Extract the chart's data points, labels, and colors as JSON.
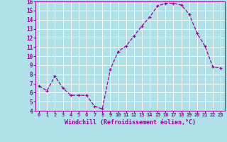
{
  "x": [
    0,
    1,
    2,
    3,
    4,
    5,
    6,
    7,
    8,
    9,
    10,
    11,
    12,
    13,
    14,
    15,
    16,
    17,
    18,
    19,
    20,
    21,
    22,
    23
  ],
  "y": [
    6.7,
    6.2,
    7.8,
    6.5,
    5.7,
    5.7,
    5.7,
    4.5,
    4.2,
    8.5,
    10.5,
    11.1,
    12.2,
    13.3,
    14.3,
    15.5,
    15.8,
    15.8,
    15.6,
    14.6,
    12.5,
    11.1,
    8.8,
    8.7
  ],
  "line_color": "#990099",
  "marker": "+",
  "bg_color": "#b0e0e8",
  "grid_color": "#ffffff",
  "xlabel": "Windchill (Refroidissement éolien,°C)",
  "xlabel_color": "#990099",
  "tick_color": "#990099",
  "spine_color": "#990099",
  "ylim": [
    4,
    16
  ],
  "xlim": [
    -0.5,
    23.5
  ],
  "yticks": [
    4,
    5,
    6,
    7,
    8,
    9,
    10,
    11,
    12,
    13,
    14,
    15,
    16
  ],
  "xticks": [
    0,
    1,
    2,
    3,
    4,
    5,
    6,
    7,
    8,
    9,
    10,
    11,
    12,
    13,
    14,
    15,
    16,
    17,
    18,
    19,
    20,
    21,
    22,
    23
  ],
  "xtick_labels": [
    "0",
    "1",
    "2",
    "3",
    "4",
    "5",
    "6",
    "7",
    "8",
    "9",
    "10",
    "11",
    "12",
    "13",
    "14",
    "15",
    "16",
    "17",
    "18",
    "19",
    "20",
    "21",
    "22",
    "23"
  ],
  "ytick_labels": [
    "4",
    "5",
    "6",
    "7",
    "8",
    "9",
    "10",
    "11",
    "12",
    "13",
    "14",
    "15",
    "16"
  ]
}
